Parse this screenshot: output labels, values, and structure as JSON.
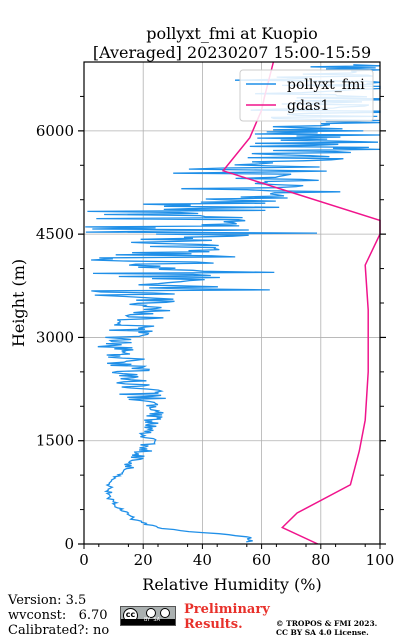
{
  "title_line1": "pollyxt_fmi at Kuopio",
  "title_line2": "[Averaged] 20230207 15:00-15:59",
  "chart_data": {
    "type": "line",
    "xlabel": "Relative Humidity (%)",
    "ylabel": "Height (m)",
    "xlim": [
      0,
      100
    ],
    "ylim": [
      0,
      7000
    ],
    "xticks": [
      0,
      20,
      40,
      60,
      80,
      100
    ],
    "yticks": [
      0,
      1500,
      3000,
      4500,
      6000
    ],
    "grid": true,
    "legend_position": "top-right",
    "series": [
      {
        "name": "pollyxt_fmi",
        "color": "#1f8fe8",
        "kind": "noisy-profile",
        "points": [
          [
            56,
            100
          ],
          [
            45,
            150
          ],
          [
            35,
            180
          ],
          [
            26,
            230
          ],
          [
            22,
            280
          ],
          [
            17,
            350
          ],
          [
            14,
            450
          ],
          [
            11,
            550
          ],
          [
            9,
            650
          ],
          [
            8.5,
            750
          ],
          [
            8.5,
            850
          ],
          [
            10,
            950
          ],
          [
            13,
            1050
          ],
          [
            15,
            1150
          ],
          [
            18,
            1250
          ],
          [
            21,
            1400
          ],
          [
            22,
            1550
          ],
          [
            22,
            1700
          ],
          [
            24,
            1850
          ],
          [
            24,
            2000
          ],
          [
            20,
            2150
          ],
          [
            15,
            2350
          ],
          [
            14,
            2550
          ],
          [
            13,
            2750
          ],
          [
            12,
            2900
          ],
          [
            16,
            3100
          ],
          [
            20,
            3300
          ],
          [
            24,
            3600
          ],
          [
            26,
            3900
          ],
          [
            32,
            4200
          ],
          [
            38,
            4500
          ],
          [
            45,
            4800
          ],
          [
            55,
            5100
          ],
          [
            65,
            5400
          ],
          [
            75,
            5700
          ],
          [
            82,
            6000
          ],
          [
            85,
            6300
          ],
          [
            88,
            6600
          ],
          [
            88,
            6900
          ]
        ]
      },
      {
        "name": "gdas1",
        "color": "#f0148c",
        "kind": "line",
        "points": [
          [
            79,
            0
          ],
          [
            67,
            240
          ],
          [
            72,
            450
          ],
          [
            90,
            860
          ],
          [
            93,
            1350
          ],
          [
            95,
            1800
          ],
          [
            96,
            2500
          ],
          [
            96,
            3400
          ],
          [
            95,
            4050
          ],
          [
            100,
            4500
          ],
          [
            100,
            4700
          ],
          [
            47,
            5420
          ],
          [
            56,
            5900
          ],
          [
            60,
            6300
          ],
          [
            61,
            6500
          ],
          [
            64,
            7000
          ]
        ]
      }
    ]
  },
  "footer": {
    "version": "Version: 3.5",
    "wvconst": "wvconst:   6.70",
    "calibrated": "Calibrated?: no",
    "cc_label": "cc",
    "cc_by_sa": "BY  SA",
    "preliminary_1": "Preliminary",
    "preliminary_2": "Results.",
    "copyright_1": "© TROPOS & FMI 2023.",
    "copyright_2": "CC BY SA 4.0 License."
  }
}
